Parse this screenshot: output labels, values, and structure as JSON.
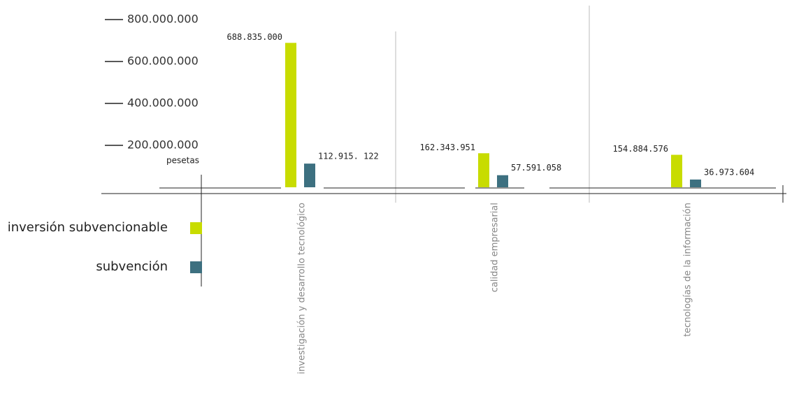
{
  "chart_data": {
    "type": "bar",
    "categories": [
      "investigación y desarrollo tecnológico",
      "calidad empresarial",
      "tecnologías de la información"
    ],
    "series": [
      {
        "name": "inversión subvencionable",
        "color": "#c8dc00",
        "values": [
          688835000,
          162343951,
          154884576
        ],
        "value_labels": [
          "688.835.000",
          "162.343.951",
          "154.884.576"
        ]
      },
      {
        "name": "subvención",
        "color": "#3d7080",
        "values": [
          112915122,
          57591058,
          36973604
        ],
        "value_labels": [
          "112.915. 122",
          "57.591.058",
          "36.973.604"
        ]
      }
    ],
    "y_unit": "pesetas",
    "ylim": [
      0,
      800000000
    ],
    "yticks": [
      {
        "value": 200000000,
        "label": "200.000.000"
      },
      {
        "value": 400000000,
        "label": "400.000.000"
      },
      {
        "value": 600000000,
        "label": "600.000.000"
      },
      {
        "value": 800000000,
        "label": "800.000.000"
      }
    ]
  }
}
